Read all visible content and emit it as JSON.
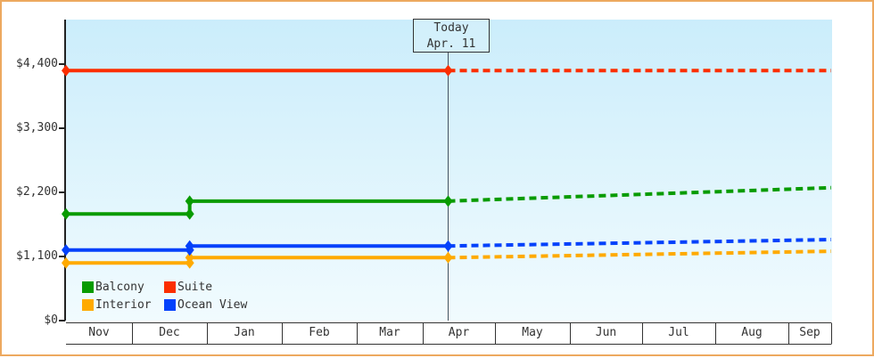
{
  "colors": {
    "frame_border": "#eda95f",
    "plot_bg_top": "#cbedfb",
    "plot_bg_bottom": "#f1fbfe",
    "axis_line": "#222222",
    "table_line": "#333333",
    "today_line": "#45525f",
    "text": "#333333"
  },
  "chart_data": {
    "type": "line",
    "title": "",
    "description": "Cabin price history (solid) and forecast after today (dashed), step changes in late December",
    "x_axis": {
      "categories": [
        "Nov",
        "Dec",
        "Jan",
        "Feb",
        "Mar",
        "Apr",
        "May",
        "Jun",
        "Jul",
        "Aug",
        "Sep"
      ]
    },
    "y_axis": {
      "ticks": [
        {
          "label": "$0",
          "value": 0
        },
        {
          "label": "$1,100",
          "value": 1100
        },
        {
          "label": "$2,200",
          "value": 2200
        },
        {
          "label": "$3,300",
          "value": 3300
        },
        {
          "label": "$4,400",
          "value": 4400
        }
      ],
      "range": [
        0,
        5165
      ],
      "grid": false
    },
    "today": {
      "label_line1": "Today",
      "label_line2": "Apr. 11",
      "month_index": 5,
      "month_frac": 0.35
    },
    "series": [
      {
        "name": "Balcony",
        "color": "#089b00",
        "history": [
          {
            "month_index": 0,
            "month_frac": 0.0,
            "value": 1830
          },
          {
            "month_index": 1,
            "month_frac": 0.77,
            "value": 2050
          }
        ],
        "today_value": 2050,
        "forecast_end_value": 2280
      },
      {
        "name": "Suite",
        "color": "#fb2e00",
        "history": [
          {
            "month_index": 0,
            "month_frac": 0.0,
            "value": 4290
          }
        ],
        "today_value": 4290,
        "forecast_end_value": 4290
      },
      {
        "name": "Interior",
        "color": "#ffaa00",
        "history": [
          {
            "month_index": 0,
            "month_frac": 0.0,
            "value": 990
          },
          {
            "month_index": 1,
            "month_frac": 0.77,
            "value": 1080
          }
        ],
        "today_value": 1080,
        "forecast_end_value": 1190
      },
      {
        "name": "Ocean View",
        "color": "#0341fb",
        "history": [
          {
            "month_index": 0,
            "month_frac": 0.0,
            "value": 1210
          },
          {
            "month_index": 1,
            "month_frac": 0.77,
            "value": 1280
          }
        ],
        "today_value": 1280,
        "forecast_end_value": 1390
      }
    ],
    "legend": {
      "position": "bottom-left-inside",
      "rows": [
        [
          "Balcony",
          "Suite"
        ],
        [
          "Interior",
          "Ocean View"
        ]
      ]
    },
    "line_style": {
      "solid_before_today": true,
      "dashed_after_today": true,
      "marker": "diamond"
    }
  }
}
